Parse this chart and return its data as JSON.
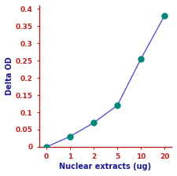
{
  "x": [
    0,
    1,
    2,
    5,
    10,
    20
  ],
  "y": [
    0.0,
    0.03,
    0.07,
    0.12,
    0.255,
    0.38
  ],
  "line_color": "#5555cc",
  "marker_color": "#008878",
  "marker_size": 5,
  "xlabel": "Nuclear extracts (ug)",
  "ylabel": "Delta OD",
  "ylim": [
    0,
    0.41
  ],
  "yticks": [
    0,
    0.05,
    0.1,
    0.15,
    0.2,
    0.25,
    0.3,
    0.35,
    0.4
  ],
  "ytick_labels": [
    "0",
    "0.05",
    "0.1",
    "0.15",
    "0.2",
    "0.25",
    "0.3",
    "0.35",
    "0.4"
  ],
  "xtick_labels": [
    "0",
    "1",
    "2",
    "5",
    "10",
    "20"
  ],
  "axis_color": "#bb2222",
  "tick_color": "#bb2222",
  "label_color": "#1a1a8c",
  "background_color": "#ffffff",
  "xlabel_fontsize": 7.0,
  "ylabel_fontsize": 7.0,
  "tick_fontsize": 6.5
}
